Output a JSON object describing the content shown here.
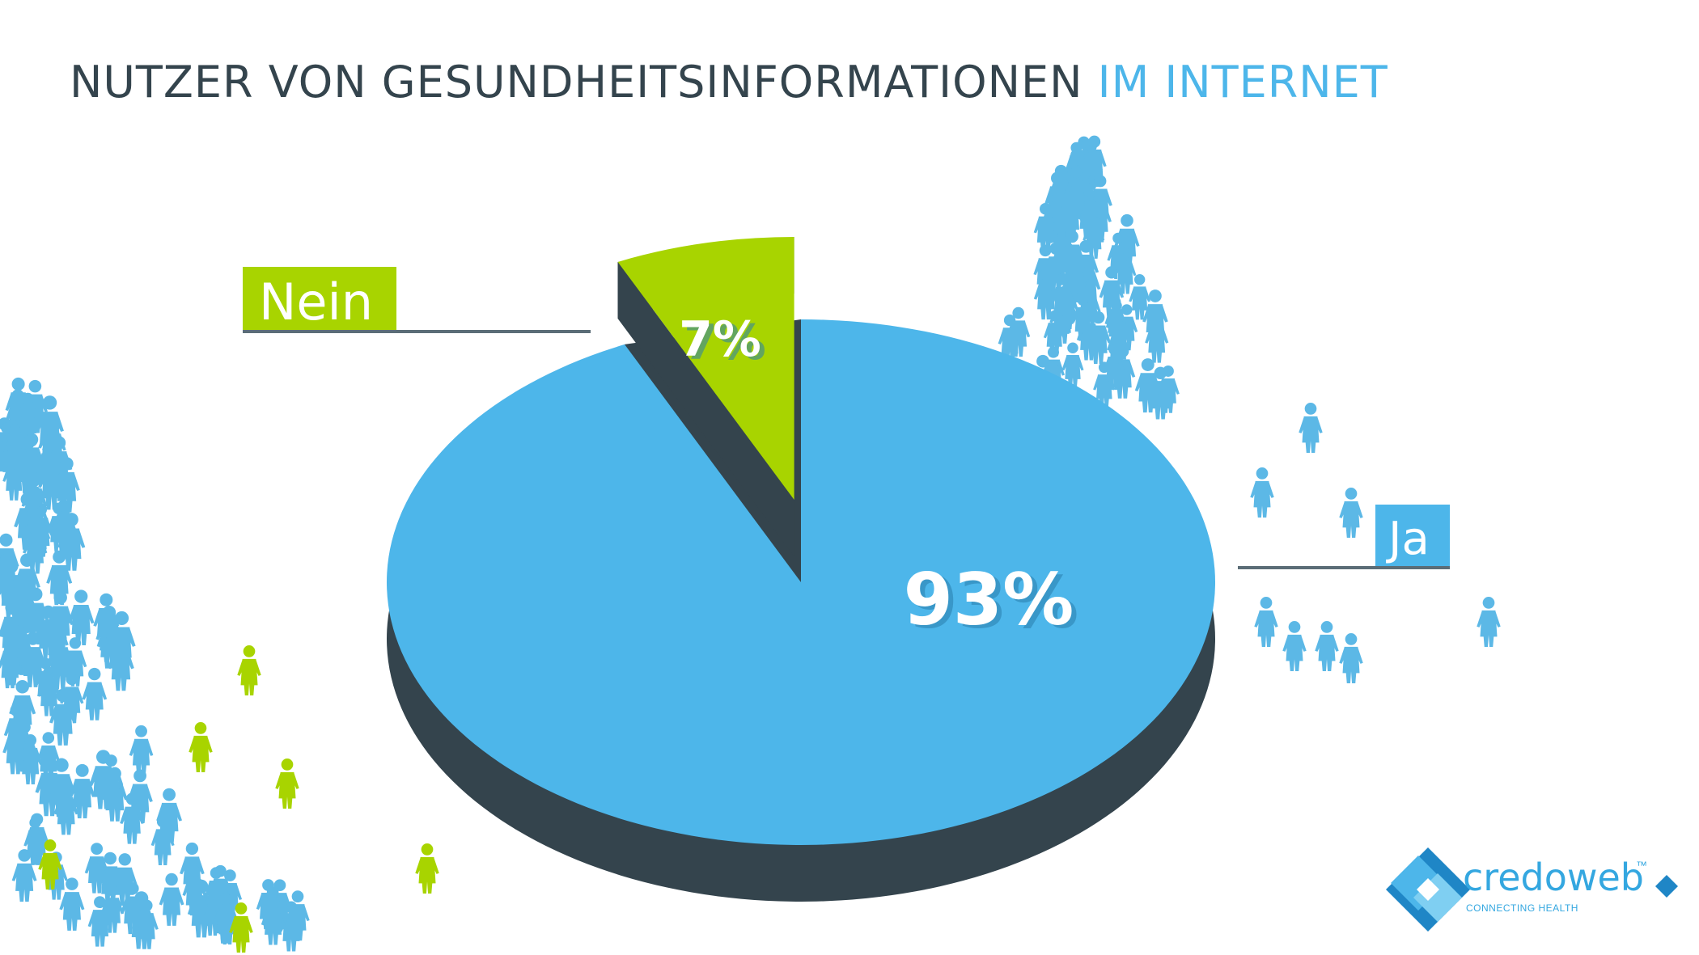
{
  "title": {
    "part1": "NUTZER VON GESUNDHEITSINFORMATIONEN ",
    "part2": "IM INTERNET"
  },
  "chart_data": {
    "type": "pie",
    "title": "NUTZER VON GESUNDHEITSINFORMATIONEN IM INTERNET",
    "slices": [
      {
        "label": "Ja",
        "value": 93,
        "display": "93%",
        "color": "#4db6ea"
      },
      {
        "label": "Nein",
        "value": 7,
        "display": "7%",
        "color": "#a8d400"
      }
    ],
    "style": "3d-exploded",
    "legend": "callout-labels"
  },
  "logo": {
    "word_a": "credo",
    "word_b": "web",
    "tm": "™",
    "tagline": "CONNECTING HEALTH"
  },
  "colors": {
    "accent": "#4db6ea",
    "green": "#a8d400",
    "dark": "#34444d"
  }
}
